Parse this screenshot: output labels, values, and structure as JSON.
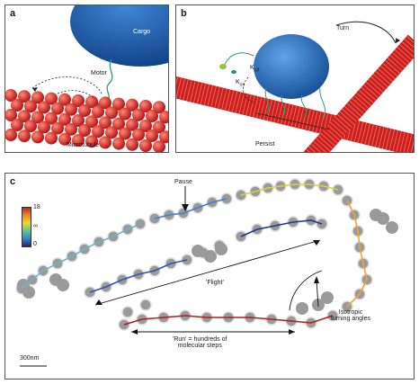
{
  "panel_a": {
    "label": "a",
    "cargo": "Cargo",
    "motor": "Motor",
    "microtubule": "Microtubule"
  },
  "panel_b": {
    "label": "b",
    "turn": "Turn",
    "k_off": "K",
    "k_off_sub": "off",
    "k_on": "K",
    "k_on_sub": "on",
    "persist": "Persist"
  },
  "panel_c": {
    "label": "c",
    "colorbar": {
      "max": "18",
      "mid": "∞",
      "min": "0"
    },
    "pause": "Pause",
    "flight": "'Flight'",
    "run_line1": "'Run' = hundreds of",
    "run_line2": "molecular steps",
    "isotropic_line1": "Isotropic",
    "isotropic_line2": "turning angles",
    "scalebar": "300nm"
  },
  "colors": {
    "microtubule": "#d42a2a",
    "cargo": "#1f5fa8",
    "motor": "#2e9e6e",
    "bead": "#9a9a9a"
  }
}
